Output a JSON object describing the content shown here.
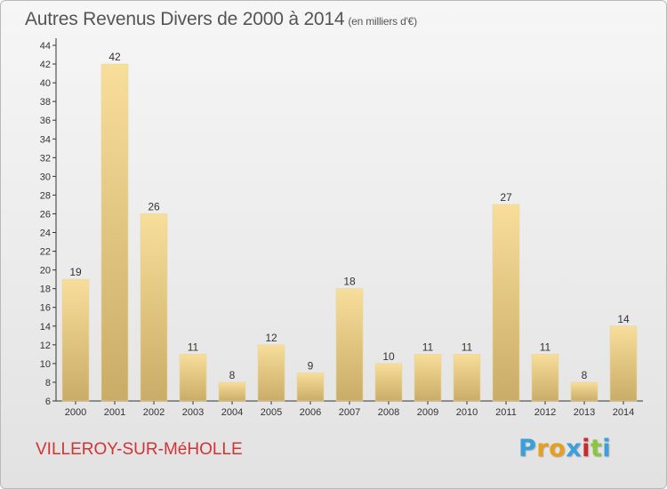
{
  "header": {
    "title": "Autres Revenus Divers de 2000 à 2014",
    "unit": "(en milliers d'€)"
  },
  "footer": {
    "town": "VILLEROY-SUR-MéHOLLE",
    "logo": "Proxiti"
  },
  "chart_data": {
    "type": "bar",
    "categories": [
      "2000",
      "2001",
      "2002",
      "2003",
      "2004",
      "2005",
      "2006",
      "2007",
      "2008",
      "2009",
      "2010",
      "2011",
      "2012",
      "2013",
      "2014"
    ],
    "values": [
      19,
      42,
      26,
      11,
      8,
      12,
      9,
      18,
      10,
      11,
      11,
      27,
      11,
      8,
      14
    ],
    "ylim": [
      6,
      44
    ],
    "yticks": [
      6,
      8,
      10,
      12,
      14,
      16,
      18,
      20,
      22,
      24,
      26,
      28,
      30,
      32,
      34,
      36,
      38,
      40,
      42,
      44
    ],
    "grid": false,
    "colors": {
      "bar_light": "#f7de9a",
      "bar_dark": "#c9ac67",
      "axis": "#333333",
      "title": "#555555",
      "town": "#d43333"
    }
  }
}
